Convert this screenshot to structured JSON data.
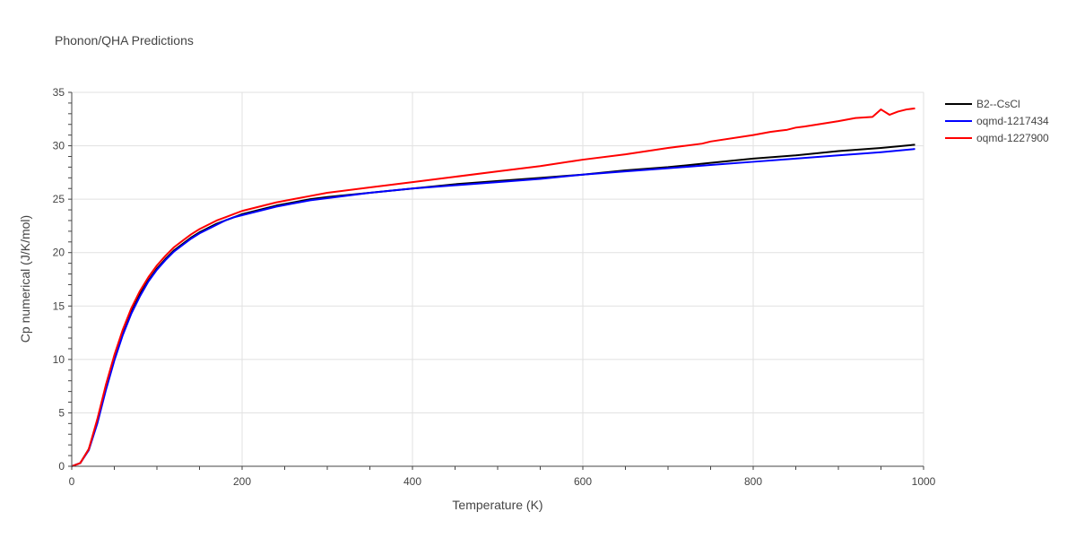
{
  "chart_data": {
    "type": "line",
    "title": "Phonon/QHA Predictions",
    "xlabel": "Temperature (K)",
    "ylabel": "Cp numerical (J/K/mol)",
    "xlim": [
      0,
      1000
    ],
    "ylim": [
      0,
      35
    ],
    "x_ticks": [
      "0",
      "200",
      "400",
      "600",
      "800",
      "1000"
    ],
    "y_ticks": [
      "0",
      "5",
      "10",
      "15",
      "20",
      "25",
      "30",
      "35"
    ],
    "grid": true,
    "legend_position": "top-right",
    "series": [
      {
        "name": "B2--CsCl",
        "color": "#000000",
        "x": [
          0,
          10,
          20,
          30,
          40,
          50,
          60,
          70,
          80,
          90,
          100,
          110,
          120,
          130,
          140,
          150,
          160,
          170,
          180,
          190,
          200,
          220,
          240,
          260,
          280,
          300,
          350,
          400,
          450,
          500,
          550,
          600,
          650,
          700,
          750,
          800,
          850,
          900,
          950,
          990
        ],
        "y": [
          0,
          0.3,
          1.6,
          4.2,
          7.3,
          10.1,
          12.5,
          14.5,
          16.1,
          17.4,
          18.5,
          19.4,
          20.2,
          20.8,
          21.4,
          21.9,
          22.3,
          22.7,
          23.0,
          23.3,
          23.6,
          24.0,
          24.4,
          24.7,
          25.0,
          25.2,
          25.6,
          26.0,
          26.4,
          26.7,
          27.0,
          27.3,
          27.7,
          28.0,
          28.4,
          28.8,
          29.1,
          29.5,
          29.8,
          30.1
        ]
      },
      {
        "name": "oqmd-1217434",
        "color": "#0000ff",
        "x": [
          0,
          10,
          20,
          30,
          40,
          50,
          60,
          70,
          80,
          90,
          100,
          110,
          120,
          130,
          140,
          150,
          160,
          170,
          180,
          190,
          200,
          220,
          240,
          260,
          280,
          300,
          350,
          400,
          450,
          500,
          550,
          600,
          650,
          700,
          750,
          800,
          850,
          900,
          950,
          990
        ],
        "y": [
          0,
          0.3,
          1.5,
          4.0,
          7.1,
          9.9,
          12.3,
          14.3,
          15.9,
          17.3,
          18.4,
          19.3,
          20.1,
          20.7,
          21.3,
          21.8,
          22.2,
          22.6,
          23.0,
          23.3,
          23.5,
          23.9,
          24.3,
          24.6,
          24.9,
          25.1,
          25.6,
          26.0,
          26.3,
          26.6,
          26.9,
          27.3,
          27.6,
          27.9,
          28.2,
          28.5,
          28.8,
          29.1,
          29.4,
          29.7
        ]
      },
      {
        "name": "oqmd-1227900",
        "color": "#ff0000",
        "x": [
          0,
          10,
          20,
          30,
          40,
          50,
          60,
          70,
          80,
          90,
          100,
          110,
          120,
          130,
          140,
          150,
          160,
          170,
          180,
          190,
          200,
          220,
          240,
          260,
          280,
          300,
          350,
          400,
          450,
          500,
          550,
          600,
          650,
          700,
          740,
          750,
          800,
          820,
          830,
          840,
          850,
          860,
          900,
          920,
          940,
          950,
          960,
          970,
          980,
          990
        ],
        "y": [
          0,
          0.3,
          1.6,
          4.4,
          7.6,
          10.4,
          12.8,
          14.8,
          16.4,
          17.7,
          18.8,
          19.7,
          20.5,
          21.1,
          21.7,
          22.2,
          22.6,
          23.0,
          23.3,
          23.6,
          23.9,
          24.3,
          24.7,
          25.0,
          25.3,
          25.6,
          26.1,
          26.6,
          27.1,
          27.6,
          28.1,
          28.7,
          29.2,
          29.8,
          30.2,
          30.4,
          31.0,
          31.3,
          31.4,
          31.5,
          31.7,
          31.8,
          32.3,
          32.6,
          32.7,
          33.4,
          32.9,
          33.2,
          33.4,
          33.5
        ]
      }
    ]
  }
}
